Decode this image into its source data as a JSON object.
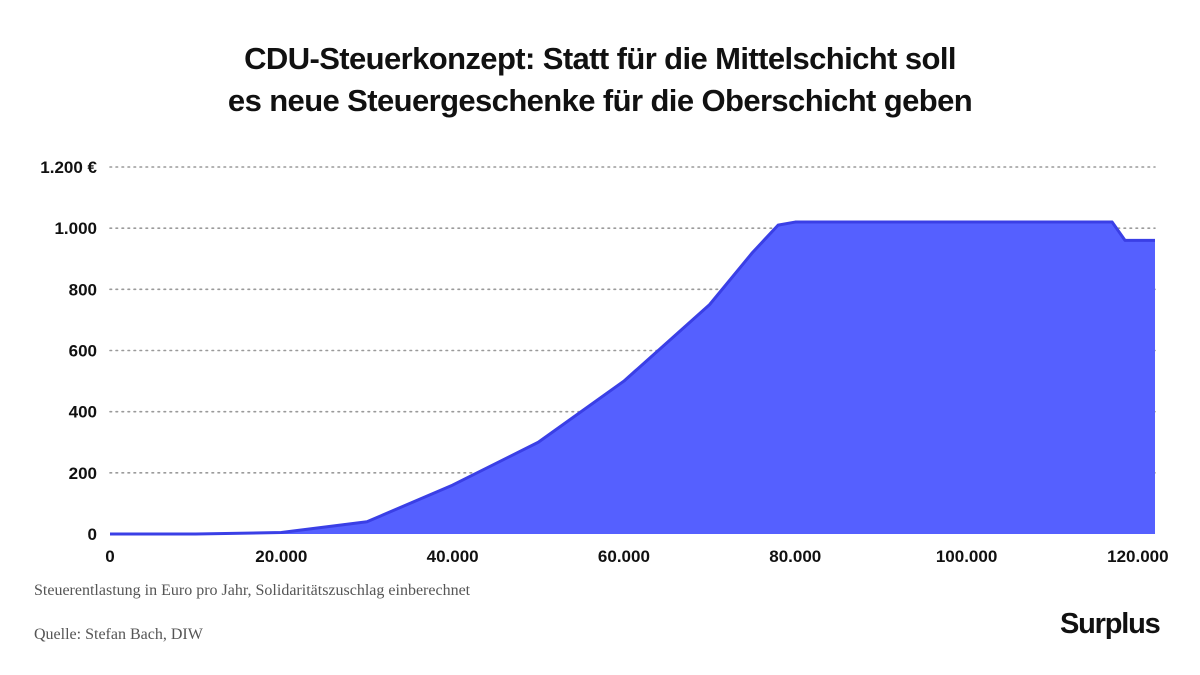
{
  "chart_data": {
    "type": "area",
    "title_lines": [
      "CDU-Steuerkonzept: Statt für die Mittelschicht soll",
      "es neue Steuergeschenke für die Oberschicht geben"
    ],
    "x": [
      0,
      10000,
      20000,
      30000,
      40000,
      50000,
      60000,
      70000,
      75000,
      78000,
      80000,
      90000,
      100000,
      110000,
      117000,
      118500,
      122000
    ],
    "y": [
      0,
      0,
      5,
      40,
      160,
      300,
      500,
      750,
      920,
      1010,
      1020,
      1020,
      1020,
      1020,
      1020,
      960,
      960
    ],
    "xlim": [
      0,
      122000
    ],
    "ylim": [
      0,
      1200
    ],
    "x_ticks": [
      0,
      20000,
      40000,
      60000,
      80000,
      100000,
      120000
    ],
    "x_tick_labels": [
      "0",
      "20.000",
      "40.000",
      "60.000",
      "80.000",
      "100.000",
      "120.000"
    ],
    "y_ticks": [
      0,
      200,
      400,
      600,
      800,
      1000,
      1200
    ],
    "y_tick_labels": [
      "0",
      "200",
      "400",
      "600",
      "800",
      "1.000",
      "1.200 €"
    ],
    "grid": true,
    "colors": {
      "fill": "#5560ff",
      "line": "#3a3fe6",
      "grid": "#9a9a9a",
      "text": "#111111"
    }
  },
  "footer": {
    "note": "Steuerentlastung in Euro pro Jahr, Solidaritätszuschlag einberechnet",
    "source": "Quelle: Stefan Bach, DIW",
    "brand": "Surplus"
  }
}
